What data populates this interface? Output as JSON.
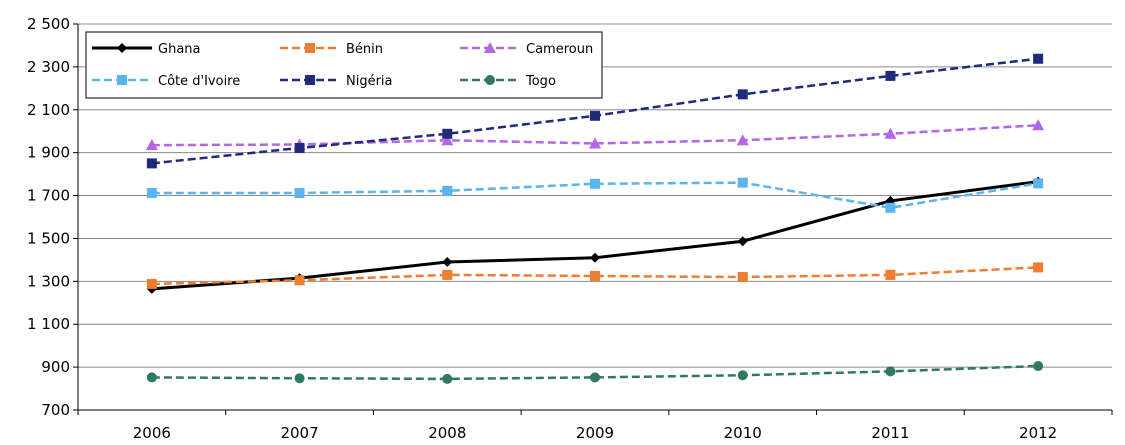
{
  "chart_data": {
    "type": "line",
    "title": "",
    "xlabel": "",
    "ylabel": "",
    "x": [
      "2006",
      "2007",
      "2008",
      "2009",
      "2010",
      "2011",
      "2012"
    ],
    "ylim": [
      700,
      2500
    ],
    "yticks": [
      700,
      900,
      1100,
      1300,
      1500,
      1700,
      1900,
      2100,
      2300,
      2500
    ],
    "ytick_labels": [
      "700",
      "900",
      "1 100",
      "1 300",
      "1 500",
      "1 700",
      "1 900",
      "2 100",
      "2 300",
      "2 500"
    ],
    "grid": "horizontal",
    "legend_position": "top-left",
    "series": [
      {
        "name": "Ghana",
        "values": [
          1265,
          1315,
          1390,
          1410,
          1487,
          1675,
          1765
        ],
        "color": "#000000",
        "dash": "solid",
        "marker": "diamond"
      },
      {
        "name": "Bénin",
        "values": [
          1288,
          1305,
          1330,
          1325,
          1320,
          1330,
          1365
        ],
        "color": "#ED7D31",
        "dash": "dashed",
        "marker": "square"
      },
      {
        "name": "Cameroun",
        "values": [
          1935,
          1938,
          1958,
          1943,
          1958,
          1988,
          2028
        ],
        "color": "#B366E6",
        "dash": "dashed",
        "marker": "triangle"
      },
      {
        "name": "Côte d'Ivoire",
        "values": [
          1712,
          1712,
          1722,
          1755,
          1760,
          1643,
          1757
        ],
        "color": "#5AB4EF",
        "dash": "dashed",
        "marker": "square"
      },
      {
        "name": "Nigéria",
        "values": [
          1850,
          1922,
          1988,
          2072,
          2172,
          2258,
          2338
        ],
        "color": "#1F2A7A",
        "dash": "dashed",
        "marker": "square"
      },
      {
        "name": "Togo",
        "values": [
          852,
          848,
          845,
          852,
          862,
          880,
          905
        ],
        "color": "#2E7A5E",
        "dash": "dashed",
        "marker": "circle"
      }
    ]
  }
}
